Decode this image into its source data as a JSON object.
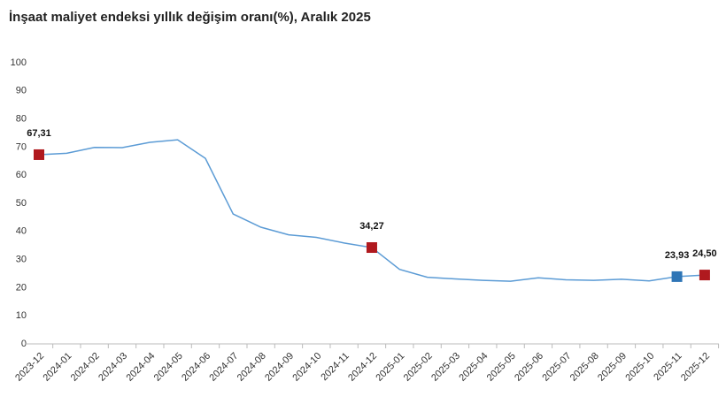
{
  "chart_data": {
    "type": "line",
    "title": "İnşaat maliyet endeksi yıllık değişim oranı(%), Aralık 2025",
    "categories": [
      "2023-12",
      "2024-01",
      "2024-02",
      "2024-03",
      "2024-04",
      "2024-05",
      "2024-06",
      "2024-07",
      "2024-08",
      "2024-09",
      "2024-10",
      "2024-11",
      "2024-12",
      "2025-01",
      "2025-02",
      "2025-03",
      "2025-04",
      "2025-05",
      "2025-06",
      "2025-07",
      "2025-08",
      "2025-09",
      "2025-10",
      "2025-11",
      "2025-12"
    ],
    "series": [
      {
        "color": "#5b9bd5",
        "values": [
          67.31,
          67.8,
          69.9,
          69.8,
          71.7,
          72.6,
          66.0,
          46.2,
          41.5,
          38.8,
          37.9,
          35.9,
          34.27,
          26.5,
          23.7,
          23.1,
          22.6,
          22.3,
          23.5,
          22.8,
          22.6,
          23.0,
          22.4,
          23.93,
          24.5
        ],
        "value_labels": [
          "67,31",
          null,
          null,
          null,
          null,
          null,
          null,
          null,
          null,
          null,
          null,
          null,
          "34,27",
          null,
          null,
          null,
          null,
          null,
          null,
          null,
          null,
          null,
          null,
          "23,93",
          "24,50"
        ],
        "marker_colors": [
          "#b0191e",
          null,
          null,
          null,
          null,
          null,
          null,
          null,
          null,
          null,
          null,
          null,
          "#b0191e",
          null,
          null,
          null,
          null,
          null,
          null,
          null,
          null,
          null,
          null,
          "#2e75b6",
          "#b0191e"
        ]
      }
    ],
    "ylim": [
      0,
      100
    ],
    "yticks": [
      0,
      10,
      20,
      30,
      40,
      50,
      60,
      70,
      80,
      90,
      100
    ],
    "grid": false
  }
}
